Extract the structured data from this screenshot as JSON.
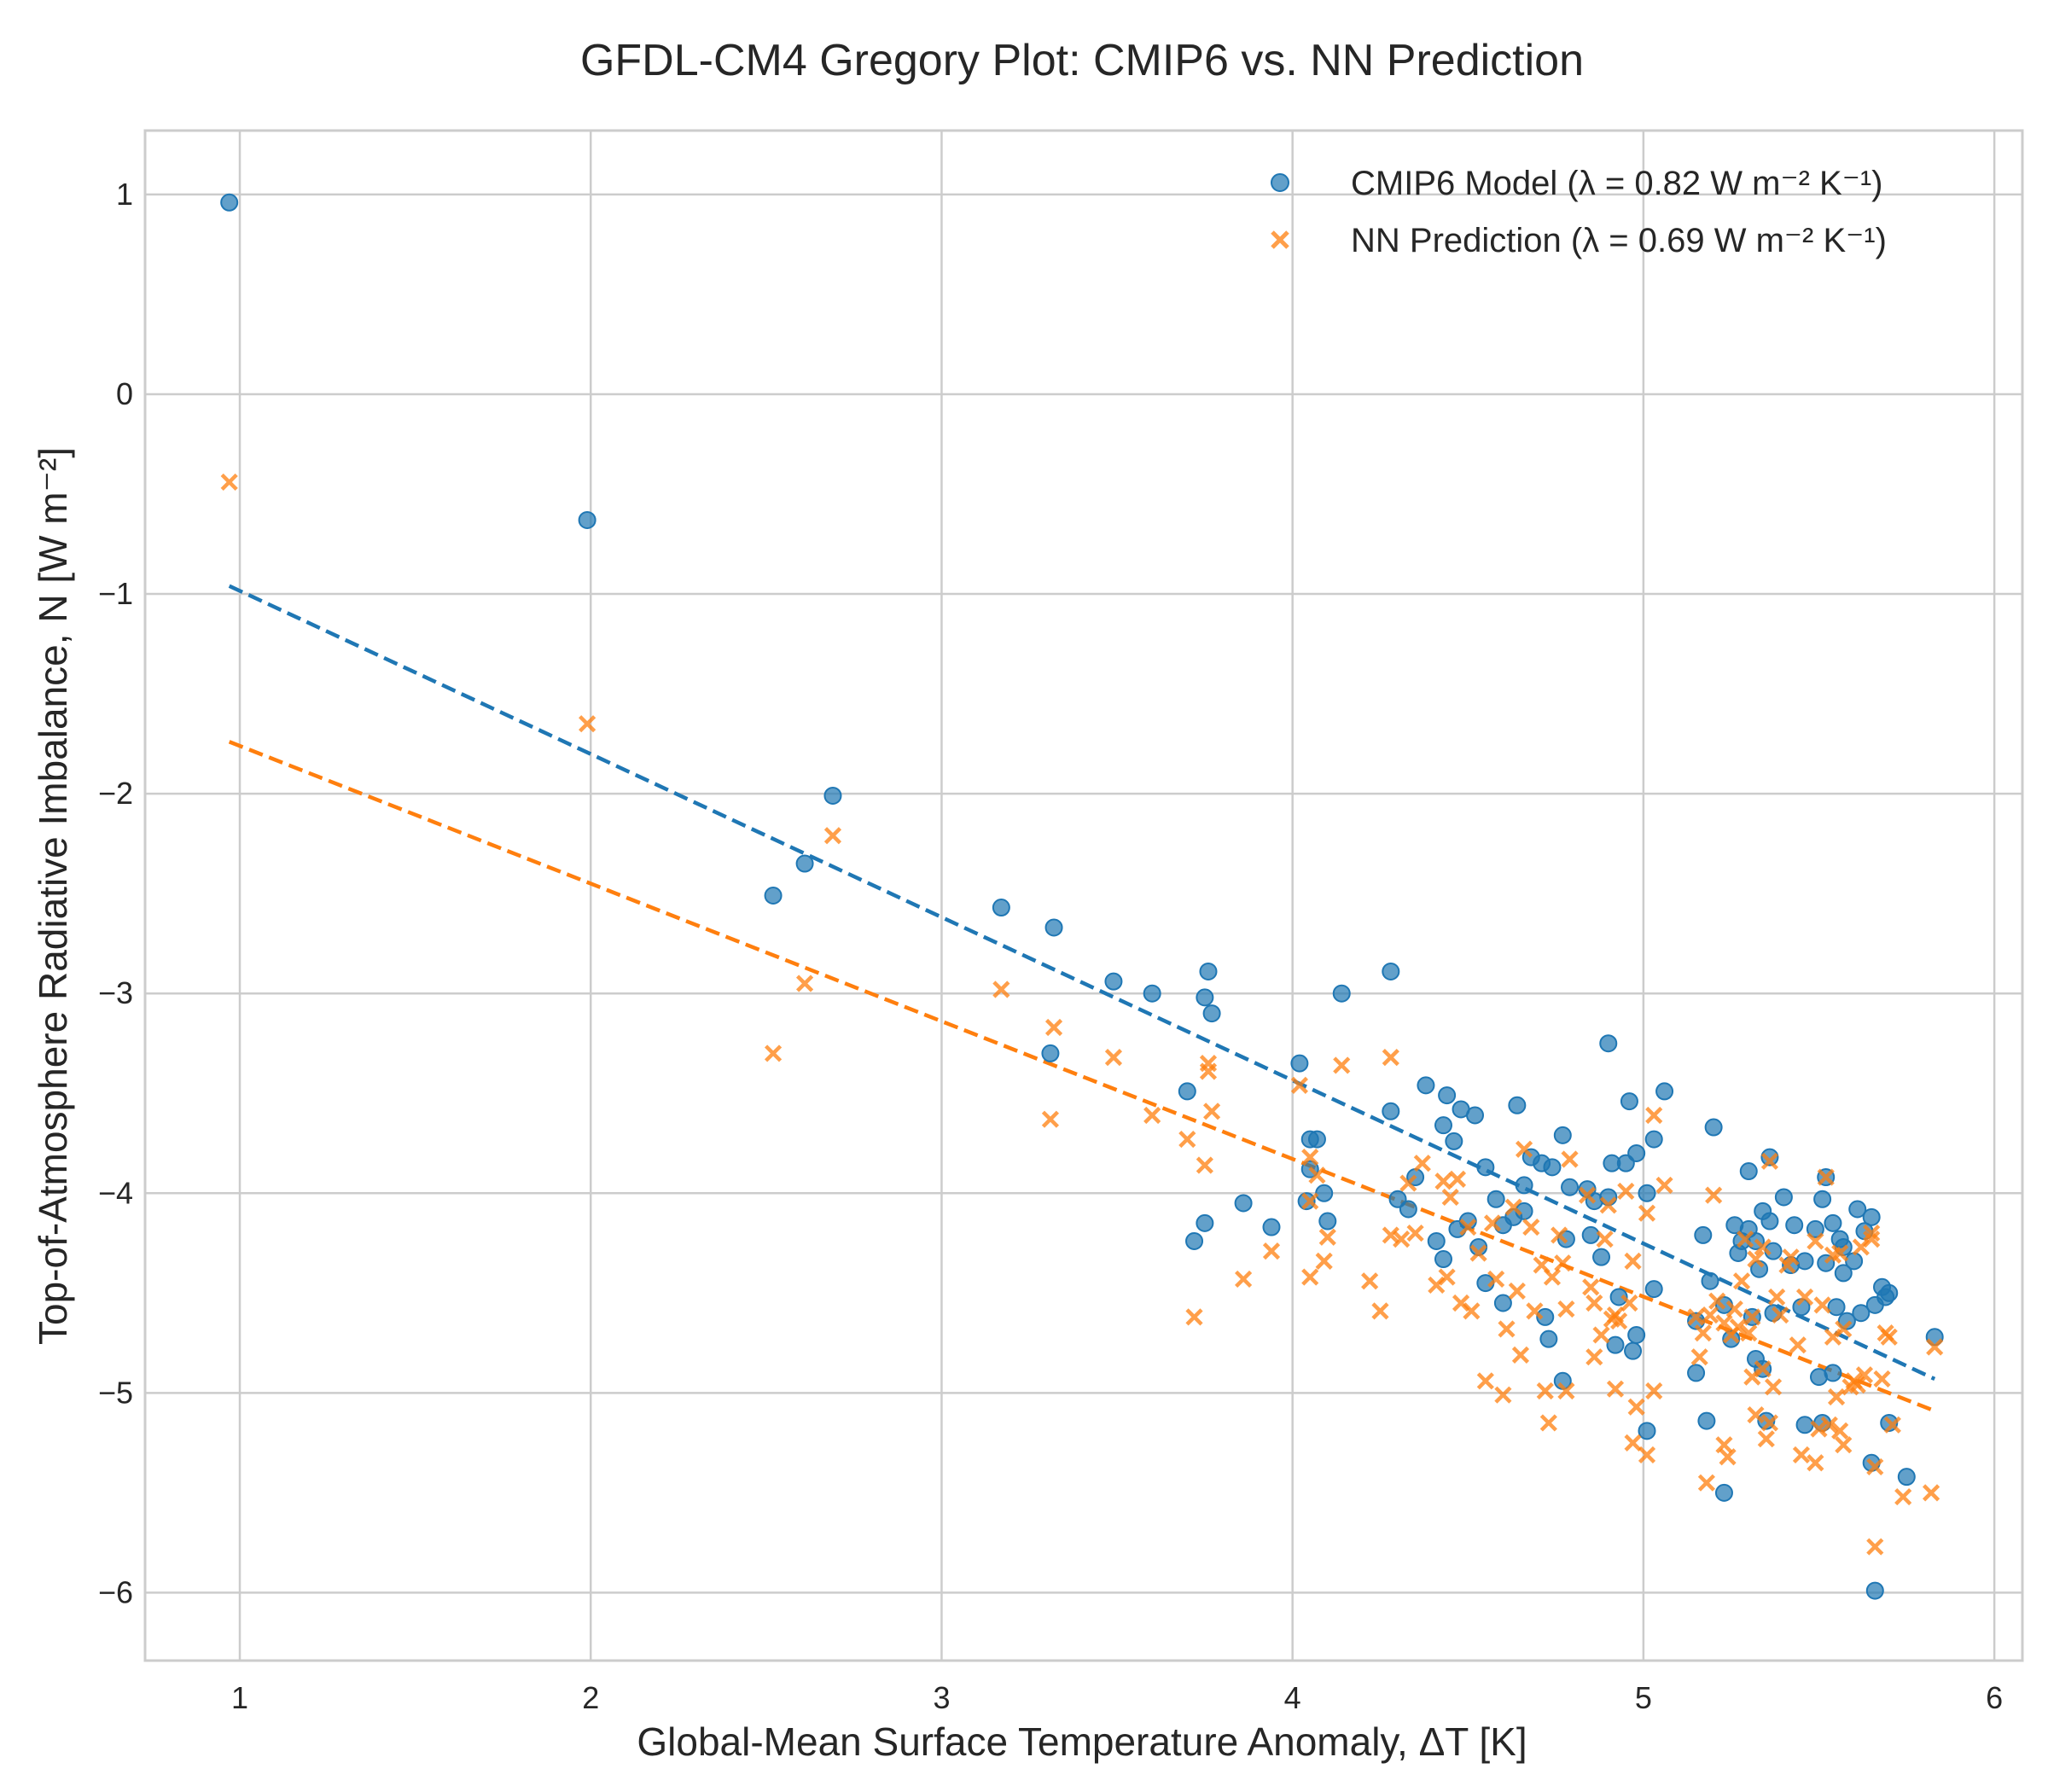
{
  "chart_data": {
    "type": "scatter",
    "title": "GFDL-CM4 Gregory Plot: CMIP6 vs. NN Prediction",
    "xlabel": "Global-Mean Surface Temperature Anomaly, ΔT [K]",
    "ylabel": "Top-of-Atmosphere Radiative Imbalance, N [W m⁻²]",
    "xlim": [
      0.73,
      6.08
    ],
    "ylim": [
      -6.34,
      1.32
    ],
    "x_ticks": [
      1,
      2,
      3,
      4,
      5,
      6
    ],
    "y_ticks": [
      1,
      0,
      -1,
      -2,
      -3,
      -4,
      -5,
      -6
    ],
    "x_tick_labels": [
      "1",
      "2",
      "3",
      "4",
      "5",
      "6"
    ],
    "y_tick_labels": [
      "1",
      "0",
      "−1",
      "−2",
      "−3",
      "−4",
      "−5",
      "−6"
    ],
    "grid": true,
    "legend_position": "top-right",
    "series": [
      {
        "name": "CMIP6 Model (λ = 0.82 W m⁻² K⁻¹)",
        "marker": "circle",
        "color": "#1f77b4",
        "points": [
          [
            0.97,
            0.96
          ],
          [
            1.99,
            -0.63
          ],
          [
            2.52,
            -2.51
          ],
          [
            2.61,
            -2.35
          ],
          [
            2.69,
            -2.01
          ],
          [
            3.17,
            -2.57
          ],
          [
            3.32,
            -2.67
          ],
          [
            3.31,
            -3.3
          ],
          [
            3.49,
            -2.94
          ],
          [
            3.6,
            -3.0
          ],
          [
            3.7,
            -3.49
          ],
          [
            3.76,
            -2.89
          ],
          [
            3.75,
            -3.02
          ],
          [
            3.77,
            -3.1
          ],
          [
            3.72,
            -4.24
          ],
          [
            3.75,
            -4.15
          ],
          [
            3.86,
            -4.05
          ],
          [
            3.94,
            -4.17
          ],
          [
            4.02,
            -3.35
          ],
          [
            4.05,
            -3.73
          ],
          [
            4.07,
            -3.73
          ],
          [
            4.05,
            -3.88
          ],
          [
            4.09,
            -4.0
          ],
          [
            4.04,
            -4.04
          ],
          [
            4.1,
            -4.14
          ],
          [
            4.14,
            -3.0
          ],
          [
            4.28,
            -2.89
          ],
          [
            4.28,
            -3.59
          ],
          [
            4.3,
            -4.03
          ],
          [
            4.33,
            -4.08
          ],
          [
            4.35,
            -3.92
          ],
          [
            4.38,
            -3.46
          ],
          [
            4.43,
            -3.66
          ],
          [
            4.44,
            -3.51
          ],
          [
            4.46,
            -3.74
          ],
          [
            4.48,
            -3.58
          ],
          [
            4.52,
            -3.61
          ],
          [
            4.41,
            -4.24
          ],
          [
            4.43,
            -4.33
          ],
          [
            4.47,
            -4.18
          ],
          [
            4.5,
            -4.14
          ],
          [
            4.53,
            -4.27
          ],
          [
            4.55,
            -4.45
          ],
          [
            4.55,
            -3.87
          ],
          [
            4.58,
            -4.03
          ],
          [
            4.6,
            -4.16
          ],
          [
            4.6,
            -4.55
          ],
          [
            4.63,
            -4.12
          ],
          [
            4.64,
            -3.56
          ],
          [
            4.66,
            -3.96
          ],
          [
            4.68,
            -3.82
          ],
          [
            4.71,
            -3.85
          ],
          [
            4.74,
            -3.87
          ],
          [
            4.77,
            -3.71
          ],
          [
            4.66,
            -4.09
          ],
          [
            4.72,
            -4.62
          ],
          [
            4.73,
            -4.73
          ],
          [
            4.77,
            -4.94
          ],
          [
            4.78,
            -4.23
          ],
          [
            4.79,
            -3.97
          ],
          [
            4.84,
            -3.98
          ],
          [
            4.85,
            -4.21
          ],
          [
            4.86,
            -4.04
          ],
          [
            4.88,
            -4.32
          ],
          [
            4.9,
            -4.02
          ],
          [
            4.9,
            -3.25
          ],
          [
            4.91,
            -3.85
          ],
          [
            4.93,
            -4.52
          ],
          [
            4.92,
            -4.76
          ],
          [
            4.95,
            -3.85
          ],
          [
            4.96,
            -3.54
          ],
          [
            4.98,
            -3.8
          ],
          [
            4.97,
            -4.79
          ],
          [
            4.98,
            -4.71
          ],
          [
            5.01,
            -4.0
          ],
          [
            5.01,
            -5.19
          ],
          [
            5.03,
            -3.73
          ],
          [
            5.03,
            -4.48
          ],
          [
            5.06,
            -3.49
          ],
          [
            5.15,
            -4.64
          ],
          [
            5.15,
            -4.9
          ],
          [
            5.17,
            -4.21
          ],
          [
            5.18,
            -5.14
          ],
          [
            5.19,
            -4.44
          ],
          [
            5.2,
            -3.67
          ],
          [
            5.23,
            -4.56
          ],
          [
            5.23,
            -5.5
          ],
          [
            5.25,
            -4.73
          ],
          [
            5.26,
            -4.16
          ],
          [
            5.27,
            -4.3
          ],
          [
            5.28,
            -4.24
          ],
          [
            5.3,
            -4.18
          ],
          [
            5.3,
            -3.89
          ],
          [
            5.31,
            -4.62
          ],
          [
            5.32,
            -4.24
          ],
          [
            5.32,
            -4.83
          ],
          [
            5.33,
            -4.38
          ],
          [
            5.34,
            -4.88
          ],
          [
            5.34,
            -4.09
          ],
          [
            5.35,
            -5.14
          ],
          [
            5.36,
            -4.14
          ],
          [
            5.36,
            -3.82
          ],
          [
            5.37,
            -4.6
          ],
          [
            5.37,
            -4.29
          ],
          [
            5.4,
            -4.02
          ],
          [
            5.42,
            -4.36
          ],
          [
            5.43,
            -4.16
          ],
          [
            5.45,
            -4.57
          ],
          [
            5.46,
            -4.34
          ],
          [
            5.46,
            -5.16
          ],
          [
            5.49,
            -4.18
          ],
          [
            5.5,
            -4.92
          ],
          [
            5.51,
            -5.15
          ],
          [
            5.51,
            -4.03
          ],
          [
            5.52,
            -3.92
          ],
          [
            5.52,
            -4.35
          ],
          [
            5.54,
            -4.15
          ],
          [
            5.54,
            -4.9
          ],
          [
            5.55,
            -4.57
          ],
          [
            5.56,
            -4.23
          ],
          [
            5.57,
            -4.27
          ],
          [
            5.57,
            -4.4
          ],
          [
            5.58,
            -4.64
          ],
          [
            5.6,
            -4.34
          ],
          [
            5.61,
            -4.08
          ],
          [
            5.62,
            -4.6
          ],
          [
            5.63,
            -4.19
          ],
          [
            5.65,
            -4.12
          ],
          [
            5.65,
            -5.35
          ],
          [
            5.66,
            -4.56
          ],
          [
            5.66,
            -5.99
          ],
          [
            5.68,
            -4.47
          ],
          [
            5.69,
            -4.52
          ],
          [
            5.7,
            -4.5
          ],
          [
            5.7,
            -5.15
          ],
          [
            5.75,
            -5.42
          ],
          [
            5.83,
            -4.72
          ]
        ],
        "fit": {
          "x": [
            0.97,
            5.83
          ],
          "y": [
            -0.96,
            -4.93
          ]
        }
      },
      {
        "name": "NN Prediction (λ = 0.69 W m⁻² K⁻¹)",
        "marker": "x",
        "color": "#ff7f0e",
        "points": [
          [
            0.97,
            -0.44
          ],
          [
            1.99,
            -1.65
          ],
          [
            2.52,
            -3.3
          ],
          [
            2.61,
            -2.95
          ],
          [
            2.69,
            -2.21
          ],
          [
            3.17,
            -2.98
          ],
          [
            3.32,
            -3.17
          ],
          [
            3.31,
            -3.63
          ],
          [
            3.49,
            -3.32
          ],
          [
            3.6,
            -3.61
          ],
          [
            3.7,
            -3.73
          ],
          [
            3.72,
            -4.62
          ],
          [
            3.75,
            -3.86
          ],
          [
            3.76,
            -3.35
          ],
          [
            3.76,
            -3.39
          ],
          [
            3.77,
            -3.59
          ],
          [
            3.86,
            -4.43
          ],
          [
            3.94,
            -4.29
          ],
          [
            4.02,
            -3.46
          ],
          [
            4.05,
            -3.82
          ],
          [
            4.05,
            -4.42
          ],
          [
            4.05,
            -4.04
          ],
          [
            4.07,
            -3.91
          ],
          [
            4.09,
            -4.34
          ],
          [
            4.1,
            -4.22
          ],
          [
            4.14,
            -3.36
          ],
          [
            4.22,
            -4.44
          ],
          [
            4.25,
            -4.59
          ],
          [
            4.28,
            -3.32
          ],
          [
            4.28,
            -4.21
          ],
          [
            4.31,
            -4.23
          ],
          [
            4.33,
            -3.95
          ],
          [
            4.35,
            -4.2
          ],
          [
            4.37,
            -3.85
          ],
          [
            4.41,
            -4.46
          ],
          [
            4.43,
            -3.94
          ],
          [
            4.44,
            -4.42
          ],
          [
            4.45,
            -4.02
          ],
          [
            4.47,
            -3.93
          ],
          [
            4.48,
            -4.55
          ],
          [
            4.5,
            -4.17
          ],
          [
            4.51,
            -4.59
          ],
          [
            4.53,
            -4.3
          ],
          [
            4.55,
            -4.94
          ],
          [
            4.57,
            -4.15
          ],
          [
            4.58,
            -4.43
          ],
          [
            4.6,
            -5.01
          ],
          [
            4.61,
            -4.68
          ],
          [
            4.63,
            -4.07
          ],
          [
            4.64,
            -4.49
          ],
          [
            4.65,
            -4.81
          ],
          [
            4.66,
            -3.78
          ],
          [
            4.68,
            -4.17
          ],
          [
            4.69,
            -4.59
          ],
          [
            4.71,
            -4.36
          ],
          [
            4.72,
            -4.99
          ],
          [
            4.73,
            -5.15
          ],
          [
            4.74,
            -4.42
          ],
          [
            4.76,
            -4.21
          ],
          [
            4.77,
            -4.35
          ],
          [
            4.78,
            -4.99
          ],
          [
            4.78,
            -4.58
          ],
          [
            4.79,
            -3.83
          ],
          [
            4.84,
            -4.01
          ],
          [
            4.85,
            -4.47
          ],
          [
            4.86,
            -4.55
          ],
          [
            4.86,
            -4.82
          ],
          [
            4.88,
            -4.71
          ],
          [
            4.89,
            -4.23
          ],
          [
            4.9,
            -4.06
          ],
          [
            4.91,
            -4.63
          ],
          [
            4.92,
            -4.61
          ],
          [
            4.92,
            -4.98
          ],
          [
            4.93,
            -4.64
          ],
          [
            4.95,
            -3.99
          ],
          [
            4.96,
            -4.55
          ],
          [
            4.97,
            -4.34
          ],
          [
            4.97,
            -5.25
          ],
          [
            4.98,
            -5.07
          ],
          [
            5.01,
            -5.31
          ],
          [
            5.01,
            -4.1
          ],
          [
            5.03,
            -3.61
          ],
          [
            5.03,
            -4.99
          ],
          [
            5.06,
            -3.96
          ],
          [
            5.15,
            -4.62
          ],
          [
            5.16,
            -4.82
          ],
          [
            5.17,
            -4.7
          ],
          [
            5.18,
            -5.45
          ],
          [
            5.19,
            -4.61
          ],
          [
            5.2,
            -4.01
          ],
          [
            5.21,
            -4.54
          ],
          [
            5.23,
            -4.65
          ],
          [
            5.23,
            -5.26
          ],
          [
            5.24,
            -5.32
          ],
          [
            5.25,
            -4.71
          ],
          [
            5.26,
            -4.58
          ],
          [
            5.27,
            -4.67
          ],
          [
            5.28,
            -4.44
          ],
          [
            5.29,
            -4.23
          ],
          [
            5.3,
            -4.7
          ],
          [
            5.31,
            -4.62
          ],
          [
            5.31,
            -4.92
          ],
          [
            5.32,
            -5.11
          ],
          [
            5.32,
            -4.33
          ],
          [
            5.34,
            -4.27
          ],
          [
            5.34,
            -4.88
          ],
          [
            5.35,
            -5.23
          ],
          [
            5.36,
            -5.15
          ],
          [
            5.36,
            -3.84
          ],
          [
            5.37,
            -4.97
          ],
          [
            5.38,
            -4.52
          ],
          [
            5.39,
            -4.61
          ],
          [
            5.41,
            -4.36
          ],
          [
            5.42,
            -4.32
          ],
          [
            5.44,
            -4.76
          ],
          [
            5.45,
            -5.31
          ],
          [
            5.46,
            -4.52
          ],
          [
            5.49,
            -5.35
          ],
          [
            5.49,
            -4.24
          ],
          [
            5.5,
            -5.18
          ],
          [
            5.51,
            -4.56
          ],
          [
            5.52,
            -3.92
          ],
          [
            5.53,
            -5.16
          ],
          [
            5.54,
            -4.31
          ],
          [
            5.54,
            -4.72
          ],
          [
            5.55,
            -5.02
          ],
          [
            5.56,
            -4.3
          ],
          [
            5.56,
            -5.19
          ],
          [
            5.57,
            -4.68
          ],
          [
            5.57,
            -5.26
          ],
          [
            5.59,
            -4.97
          ],
          [
            5.6,
            -4.94
          ],
          [
            5.61,
            -4.96
          ],
          [
            5.62,
            -4.27
          ],
          [
            5.63,
            -4.91
          ],
          [
            5.65,
            -4.2
          ],
          [
            5.65,
            -4.23
          ],
          [
            5.66,
            -5.37
          ],
          [
            5.66,
            -5.77
          ],
          [
            5.68,
            -4.93
          ],
          [
            5.69,
            -4.7
          ],
          [
            5.7,
            -4.72
          ],
          [
            5.71,
            -5.16
          ],
          [
            5.74,
            -5.52
          ],
          [
            5.82,
            -5.5
          ],
          [
            5.83,
            -4.77
          ]
        ],
        "fit": {
          "x": [
            0.97,
            5.83
          ],
          "y": [
            -1.74,
            -5.09
          ]
        }
      }
    ]
  }
}
